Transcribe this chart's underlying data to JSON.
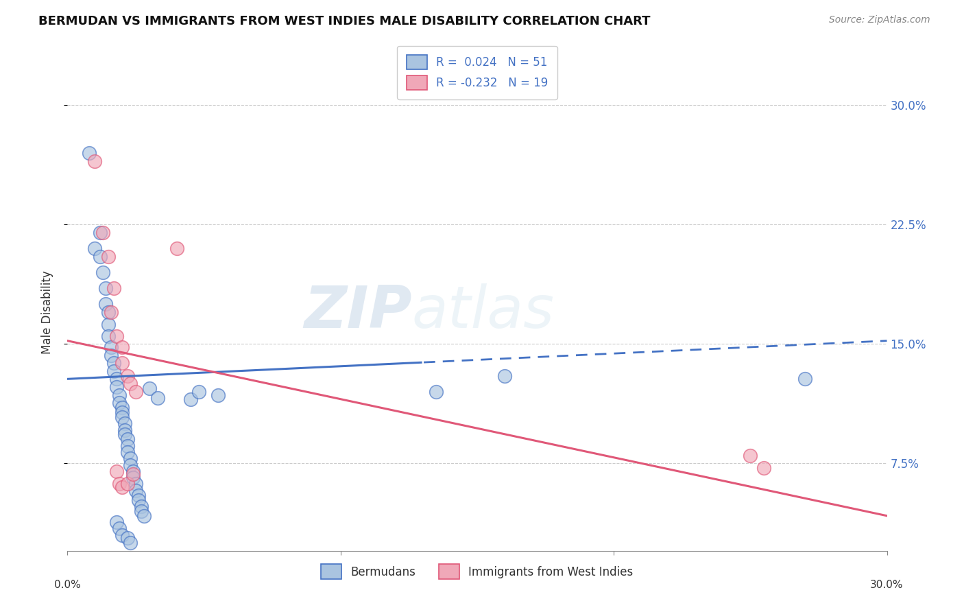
{
  "title": "BERMUDAN VS IMMIGRANTS FROM WEST INDIES MALE DISABILITY CORRELATION CHART",
  "source": "Source: ZipAtlas.com",
  "ylabel": "Male Disability",
  "legend_label1": "Bermudans",
  "legend_label2": "Immigrants from West Indies",
  "r1": "0.024",
  "n1": "51",
  "r2": "-0.232",
  "n2": "19",
  "yticks_pct": [
    7.5,
    15.0,
    22.5,
    30.0
  ],
  "ytick_labels": [
    "7.5%",
    "15.0%",
    "22.5%",
    "30.0%"
  ],
  "xlim": [
    0.0,
    0.3
  ],
  "ylim": [
    0.02,
    0.32
  ],
  "blue_color": "#aac4e0",
  "pink_color": "#f0a8b8",
  "blue_line_color": "#4472c4",
  "pink_line_color": "#e05878",
  "watermark_zip": "ZIP",
  "watermark_atlas": "atlas",
  "blue_line_solid_end": 0.13,
  "blue_line_start_y": 0.128,
  "blue_line_end_y": 0.152,
  "pink_line_start_y": 0.152,
  "pink_line_end_y": 0.042,
  "blue_scatter": [
    [
      0.008,
      0.27
    ],
    [
      0.01,
      0.21
    ],
    [
      0.012,
      0.22
    ],
    [
      0.012,
      0.205
    ],
    [
      0.013,
      0.195
    ],
    [
      0.014,
      0.185
    ],
    [
      0.014,
      0.175
    ],
    [
      0.015,
      0.17
    ],
    [
      0.015,
      0.162
    ],
    [
      0.015,
      0.155
    ],
    [
      0.016,
      0.148
    ],
    [
      0.016,
      0.143
    ],
    [
      0.017,
      0.138
    ],
    [
      0.017,
      0.133
    ],
    [
      0.018,
      0.128
    ],
    [
      0.018,
      0.123
    ],
    [
      0.019,
      0.118
    ],
    [
      0.019,
      0.113
    ],
    [
      0.02,
      0.11
    ],
    [
      0.02,
      0.107
    ],
    [
      0.02,
      0.104
    ],
    [
      0.021,
      0.1
    ],
    [
      0.021,
      0.096
    ],
    [
      0.021,
      0.093
    ],
    [
      0.022,
      0.09
    ],
    [
      0.022,
      0.086
    ],
    [
      0.022,
      0.082
    ],
    [
      0.023,
      0.078
    ],
    [
      0.023,
      0.074
    ],
    [
      0.024,
      0.07
    ],
    [
      0.024,
      0.066
    ],
    [
      0.025,
      0.062
    ],
    [
      0.025,
      0.058
    ],
    [
      0.026,
      0.055
    ],
    [
      0.026,
      0.052
    ],
    [
      0.027,
      0.048
    ],
    [
      0.027,
      0.045
    ],
    [
      0.028,
      0.042
    ],
    [
      0.018,
      0.038
    ],
    [
      0.019,
      0.034
    ],
    [
      0.02,
      0.03
    ],
    [
      0.022,
      0.028
    ],
    [
      0.023,
      0.025
    ],
    [
      0.03,
      0.122
    ],
    [
      0.033,
      0.116
    ],
    [
      0.045,
      0.115
    ],
    [
      0.048,
      0.12
    ],
    [
      0.055,
      0.118
    ],
    [
      0.135,
      0.12
    ],
    [
      0.16,
      0.13
    ],
    [
      0.27,
      0.128
    ]
  ],
  "pink_scatter": [
    [
      0.01,
      0.265
    ],
    [
      0.013,
      0.22
    ],
    [
      0.015,
      0.205
    ],
    [
      0.017,
      0.185
    ],
    [
      0.016,
      0.17
    ],
    [
      0.018,
      0.155
    ],
    [
      0.02,
      0.148
    ],
    [
      0.02,
      0.138
    ],
    [
      0.022,
      0.13
    ],
    [
      0.023,
      0.125
    ],
    [
      0.025,
      0.12
    ],
    [
      0.018,
      0.07
    ],
    [
      0.019,
      0.062
    ],
    [
      0.02,
      0.06
    ],
    [
      0.022,
      0.062
    ],
    [
      0.024,
      0.068
    ],
    [
      0.25,
      0.08
    ],
    [
      0.255,
      0.072
    ],
    [
      0.04,
      0.21
    ]
  ]
}
